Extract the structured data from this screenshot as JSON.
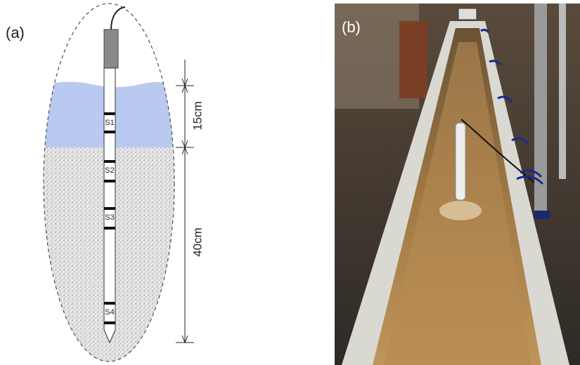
{
  "panel_a": {
    "label": "(a)",
    "sensors": [
      "S1",
      "S2",
      "S3",
      "S4"
    ],
    "dimensions": [
      "15cm",
      "40cm"
    ]
  },
  "panel_b": {
    "label": "(b)"
  }
}
